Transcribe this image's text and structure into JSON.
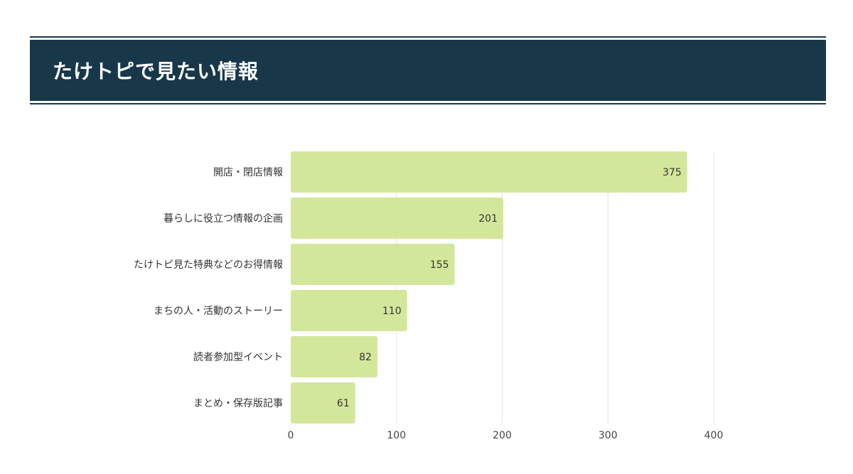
{
  "header": {
    "title": "たけトピで見たい情報"
  },
  "chart_data": {
    "type": "bar",
    "orientation": "horizontal",
    "title": "",
    "xlabel": "",
    "ylabel": "",
    "categories": [
      "開店・閉店情報",
      "暮らしに役立つ情報の企画",
      "たけトピ見た特典などのお得情報",
      "まちの人・活動のストーリー",
      "読者参加型イベント",
      "まとめ・保存版記事"
    ],
    "values": [
      375,
      201,
      155,
      110,
      82,
      61
    ],
    "xlim": [
      0,
      400
    ],
    "xticks": [
      0,
      100,
      200,
      300,
      400
    ],
    "grid": true,
    "bar_color": "#d3e79a",
    "grid_color": "#e6e6e6"
  }
}
